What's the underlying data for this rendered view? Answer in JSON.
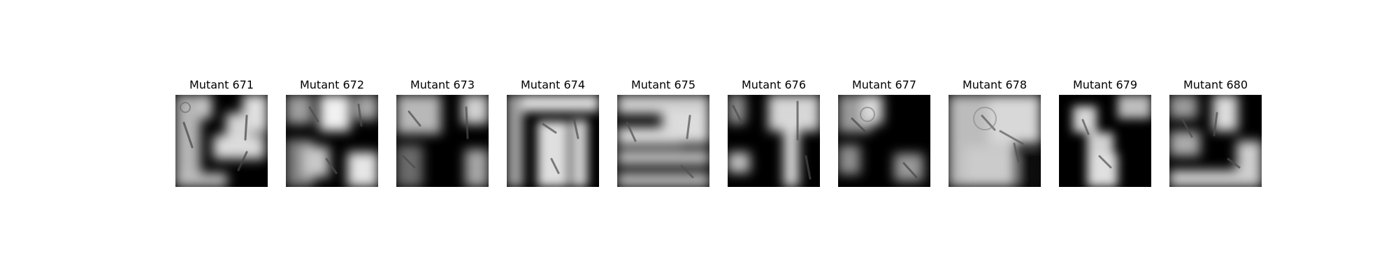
{
  "figure": {
    "titles": [
      "Mutant 671",
      "Mutant 672",
      "Mutant 673",
      "Mutant 674",
      "Mutant 675",
      "Mutant 676",
      "Mutant 677",
      "Mutant 678",
      "Mutant 679",
      "Mutant 680"
    ]
  },
  "colors": {
    "background": "#ffffff",
    "mask_dark": "#000000",
    "mask_light": "#d9d9d9"
  }
}
